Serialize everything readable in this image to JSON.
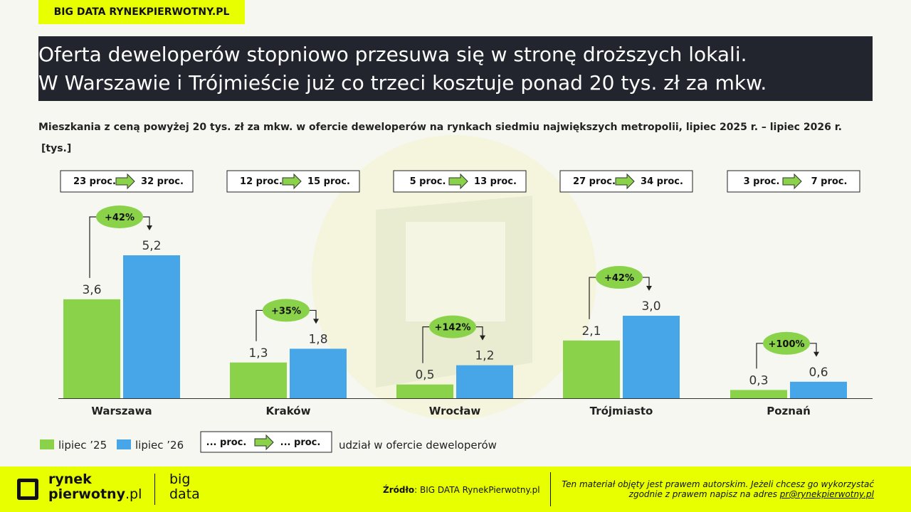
{
  "header": {
    "tag": "BIG DATA RYNEKPIERWOTNY.PL",
    "headline_line1": "Oferta deweloperów stopniowo przesuwa się w stronę droższych lokali.",
    "headline_line2": "W Warszawie i Trójmieście już co trzeci kosztuje ponad 20 tys. zł za mkw."
  },
  "chart_data": {
    "type": "bar",
    "title": "Mieszkania z ceną powyżej  20 tys. zł za mkw. w ofercie deweloperów na rynkach siedmiu największych metropolii, lipiec 2025 r. – lipiec 2026 r.",
    "unit": "[tys.]",
    "categories": [
      "Warszawa",
      "Kraków",
      "Wrocław",
      "Trójmiasto",
      "Poznań"
    ],
    "series": [
      {
        "name": "lipiec ’25",
        "color": "#8ad24a",
        "values": [
          3.6,
          1.3,
          0.5,
          2.1,
          0.3
        ],
        "labels": [
          "3,6",
          "1,3",
          "0,5",
          "2,1",
          "0,3"
        ]
      },
      {
        "name": "lipiec ’26",
        "color": "#46a6e8",
        "values": [
          5.2,
          1.8,
          1.2,
          3.0,
          0.6
        ],
        "labels": [
          "5,2",
          "1,8",
          "1,2",
          "3,0",
          "0,6"
        ]
      }
    ],
    "changes": [
      "+42%",
      "+35%",
      "+142%",
      "+42%",
      "+100%"
    ],
    "share_from": [
      "23 proc.",
      "12 proc.",
      "5 proc.",
      "27 proc.",
      "3 proc."
    ],
    "share_to": [
      "32 proc.",
      "15 proc.",
      "13 proc.",
      "34 proc.",
      "7 proc."
    ],
    "ylim": [
      0,
      5.2
    ],
    "grid": false,
    "legend": {
      "placement": "bottom-left",
      "share_from": "... proc.",
      "share_to": "... proc.",
      "share_description": "udział w ofercie deweloperów"
    }
  },
  "footer": {
    "logo_line1": "rynek",
    "logo_line2": "pierwotny",
    "logo_line2_suffix": ".pl",
    "big": "big",
    "data": "data",
    "source_label": "Źródło",
    "source_text": ": BIG DATA RynekPierwotny.pl",
    "copyright_line1": "Ten materiał objęty jest prawem autorskim. Jeżeli chcesz go wykorzystać",
    "copyright_line2": "zgodnie z prawem napisz na adres ",
    "copyright_email": "pr@rynekpierwotny.pl"
  },
  "colors": {
    "accent": "#e8ff00",
    "dark": "#23252e",
    "green": "#8ad24a",
    "blue": "#46a6e8"
  }
}
